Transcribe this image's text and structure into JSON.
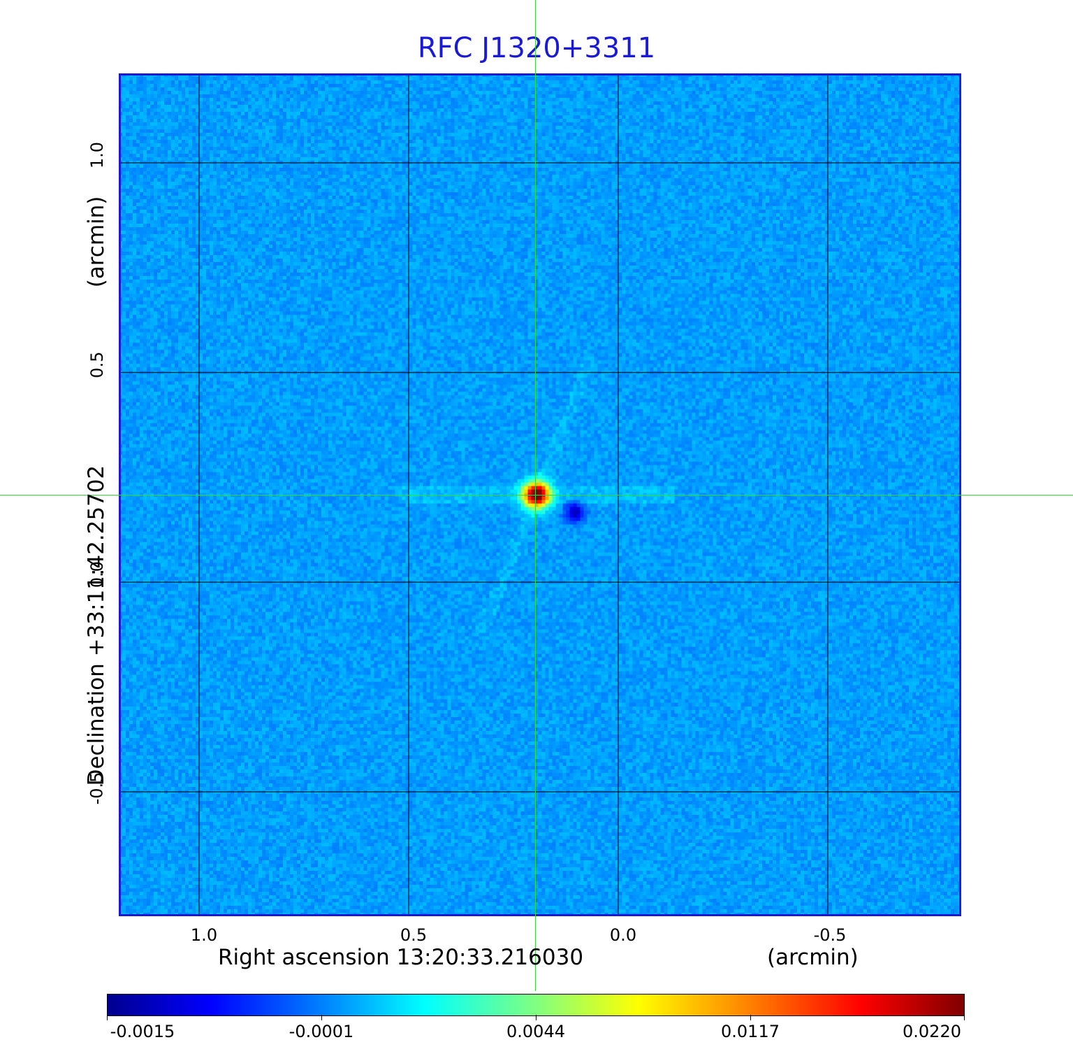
{
  "title": "RFC J1320+3311",
  "axes": {
    "x_label": "Right ascension  13:20:33.216030",
    "x_unit": "(arcmin)",
    "y_label": "Declination  +33:11:42.25702",
    "y_unit": "(arcmin)",
    "x_ticks": [
      "1.0",
      "0.5",
      "0.0",
      "-0.5"
    ],
    "y_ticks": [
      "1.0",
      "0.5",
      "0.0",
      "-0.5"
    ]
  },
  "colorbar": {
    "ticks": [
      "-0.0015",
      "-0.0001",
      "0.0044",
      "0.0117",
      "0.0220"
    ],
    "colormap": "jet"
  },
  "colors": {
    "title": "#1a1ad6",
    "frame": "#1a1ad6",
    "grid": "#000000",
    "crosshair": "#33dd33",
    "background_field": "#1e90f0"
  },
  "image": {
    "description": "radio map with compact bright source at center",
    "peak_value": 0.022
  }
}
